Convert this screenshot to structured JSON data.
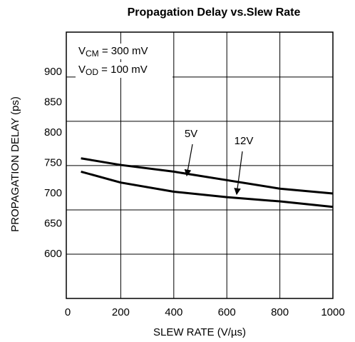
{
  "chart_data": {
    "type": "line",
    "title": "Propagation Delay vs.Slew Rate",
    "xlabel": "SLEW RATE (V/µs)",
    "ylabel": "PROPAGATION DELAY (ps)",
    "x": [
      50,
      200,
      400,
      600,
      800,
      1000
    ],
    "series": [
      {
        "name": "5V",
        "color": "#000000",
        "values": [
          758,
          747,
          736,
          722,
          708,
          700
        ]
      },
      {
        "name": "12V",
        "color": "#000000",
        "values": [
          736,
          718,
          703,
          694,
          687,
          678
        ]
      }
    ],
    "xlim": [
      0,
      1000
    ],
    "xticks": [
      0,
      200,
      400,
      600,
      800,
      1000
    ],
    "ylim": [
      527,
      966
    ],
    "yticks": [
      600,
      650,
      700,
      750,
      800,
      850,
      900
    ],
    "ygrid": [
      600,
      673,
      746,
      819,
      892
    ],
    "grid": true,
    "annotations": [
      {
        "text": "V",
        "sub": "CM",
        "rest": " = 300 mV"
      },
      {
        "text": "V",
        "sub": "OD",
        "rest": " = 100 mV"
      }
    ]
  }
}
